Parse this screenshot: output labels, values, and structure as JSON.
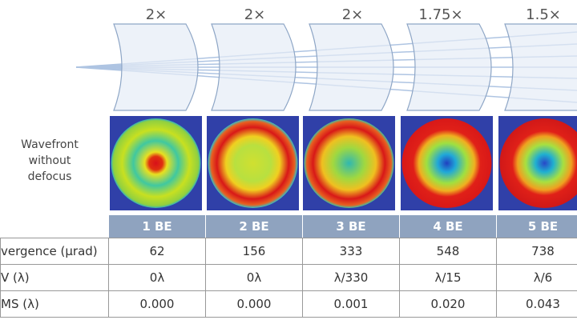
{
  "magnifications": [
    "2×",
    "2×",
    "2×",
    "1.75×",
    "1.5×"
  ],
  "wavefront_label": [
    "Wavefront",
    "without",
    "defocus"
  ],
  "table": {
    "header": [
      "1 BE",
      "2 BE",
      "3 BE",
      "4 BE",
      "5 BE"
    ],
    "rows": [
      [
        "vergence (μrad)",
        "62",
        "156",
        "333",
        "548",
        "738"
      ],
      [
        "V (λ)",
        "0λ",
        "0λ",
        "λ/330",
        "λ/15",
        "λ/6"
      ],
      [
        "MS (λ)",
        "0.000",
        "0.000",
        "0.001",
        "0.020",
        "0.043"
      ]
    ]
  }
}
